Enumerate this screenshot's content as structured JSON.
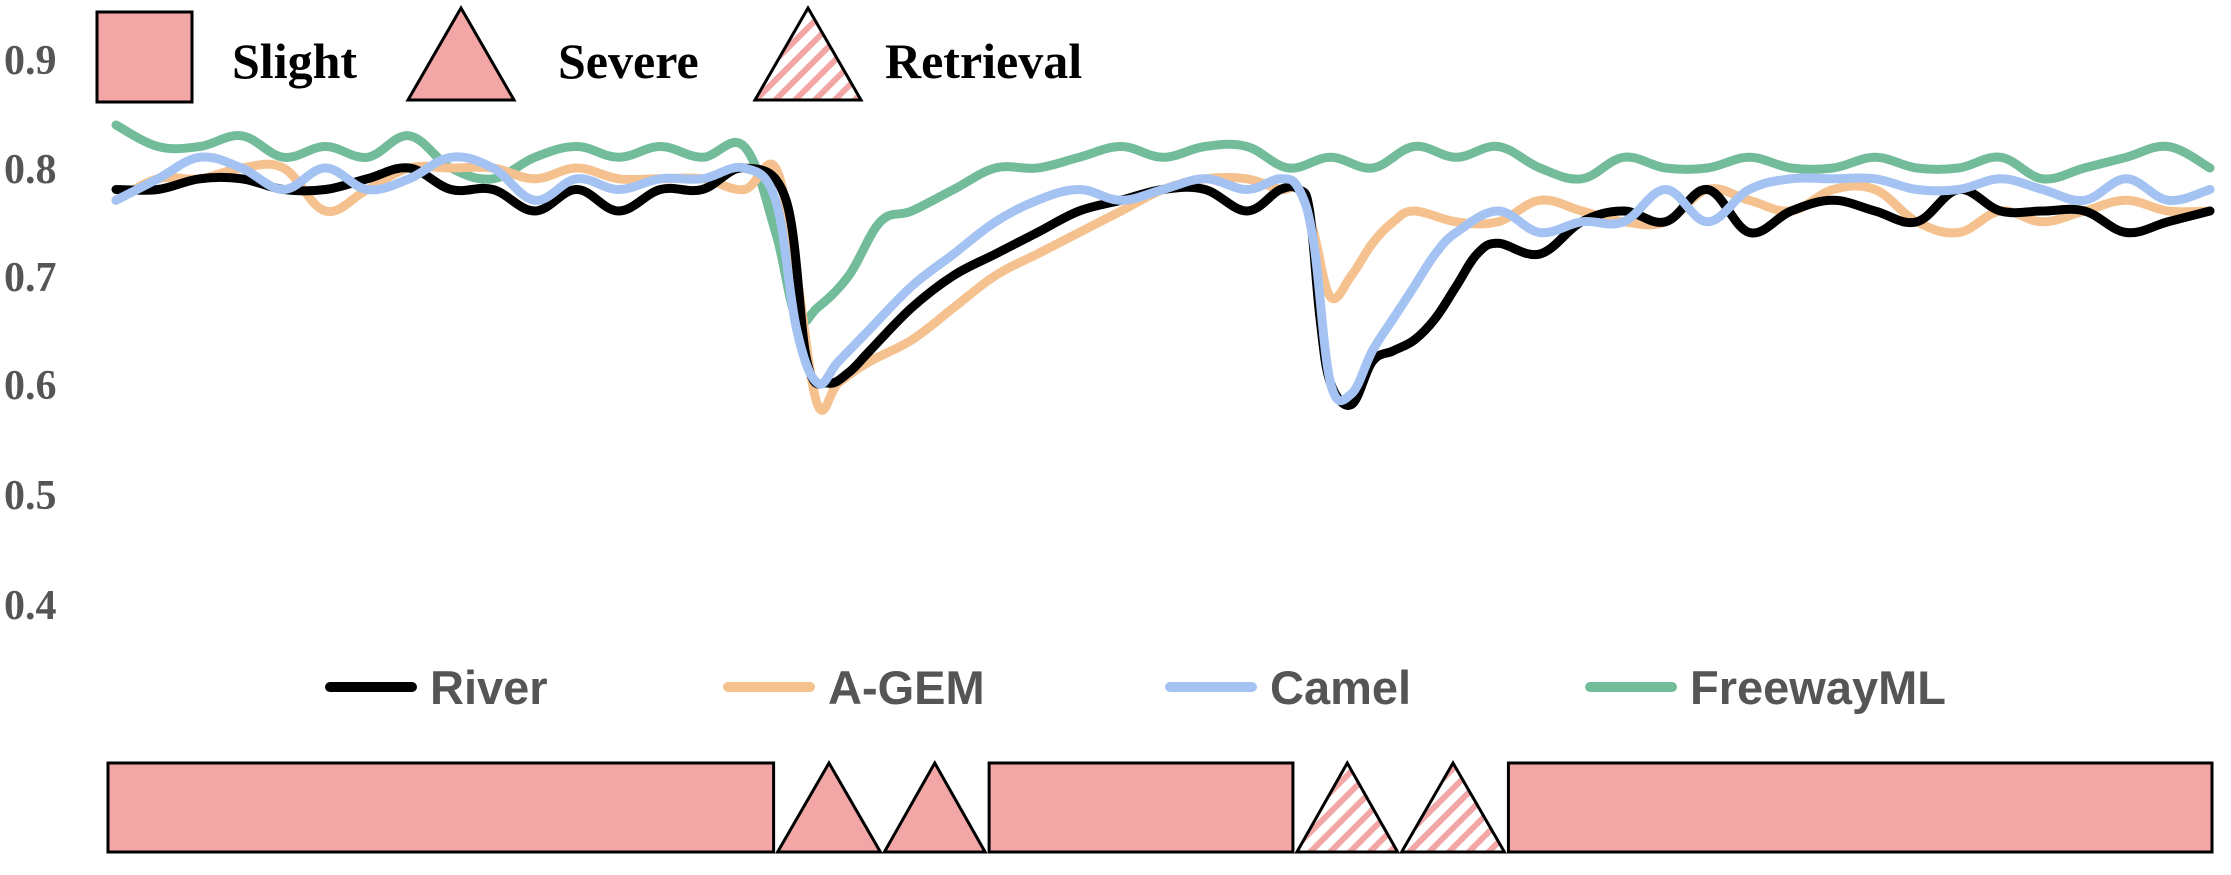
{
  "chart_data": {
    "type": "line",
    "title": "",
    "xlabel": "",
    "ylabel": "",
    "ylim": [
      0.4,
      0.95
    ],
    "xlim": [
      0,
      100
    ],
    "y_ticks": [
      0.4,
      0.5,
      0.6,
      0.7,
      0.8,
      0.9
    ],
    "y_tick_labels": [
      "0.4",
      "0.5",
      "0.6",
      "0.7",
      "0.8",
      "0.9"
    ],
    "grid": false,
    "legend": {
      "drift_types": [
        {
          "label": "Slight",
          "shape": "rectangle"
        },
        {
          "label": "Severe",
          "shape": "triangle"
        },
        {
          "label": "Retrieval",
          "shape": "hatched-triangle"
        }
      ],
      "series_placement": "bottom-center",
      "drift_placement": "top-left"
    },
    "drift_sequence": [
      {
        "type": "Slight",
        "start": 0,
        "end": 31.5
      },
      {
        "type": "Severe",
        "start": 31.5,
        "end": 36.6
      },
      {
        "type": "Severe",
        "start": 36.6,
        "end": 41.6
      },
      {
        "type": "Slight",
        "start": 41.6,
        "end": 56.3
      },
      {
        "type": "Retrieval",
        "start": 56.3,
        "end": 61.3
      },
      {
        "type": "Retrieval",
        "start": 61.3,
        "end": 66.4
      },
      {
        "type": "Slight",
        "start": 66.4,
        "end": 100
      }
    ],
    "series": [
      {
        "name": "River",
        "color": "#000000",
        "x": [
          0,
          2,
          4,
          6,
          8,
          10,
          12,
          14,
          16,
          18,
          20,
          22,
          24,
          26,
          28,
          30,
          32,
          33,
          34,
          35,
          36,
          38,
          40,
          42,
          44,
          46,
          48,
          50,
          52,
          54,
          55.6,
          56.5,
          57,
          57.5,
          58,
          59,
          60,
          61,
          62,
          63,
          64,
          65,
          66,
          68,
          70,
          72,
          74,
          76,
          78,
          80,
          82,
          84,
          86,
          88,
          90,
          92,
          94,
          96,
          98,
          100
        ],
        "values": [
          0.78,
          0.78,
          0.79,
          0.79,
          0.78,
          0.78,
          0.79,
          0.8,
          0.78,
          0.78,
          0.76,
          0.78,
          0.76,
          0.78,
          0.78,
          0.8,
          0.77,
          0.62,
          0.6,
          0.61,
          0.63,
          0.67,
          0.7,
          0.72,
          0.74,
          0.76,
          0.77,
          0.78,
          0.78,
          0.76,
          0.78,
          0.78,
          0.76,
          0.66,
          0.6,
          0.58,
          0.62,
          0.63,
          0.64,
          0.66,
          0.69,
          0.72,
          0.73,
          0.72,
          0.75,
          0.76,
          0.75,
          0.78,
          0.74,
          0.76,
          0.77,
          0.76,
          0.75,
          0.78,
          0.76,
          0.76,
          0.76,
          0.74,
          0.75,
          0.76
        ]
      },
      {
        "name": "A-GEM",
        "color": "#F5C28F",
        "x": [
          0,
          2,
          4,
          6,
          8,
          10,
          12,
          14,
          16,
          18,
          20,
          22,
          24,
          26,
          28,
          30,
          31.5,
          32.5,
          33.5,
          34.5,
          36,
          38,
          40,
          42,
          44,
          46,
          48,
          50,
          52,
          54,
          55.6,
          56.5,
          57.2,
          58,
          59,
          60,
          61,
          62,
          64,
          66,
          68,
          70,
          72,
          74,
          76,
          78,
          80,
          82,
          84,
          86,
          88,
          90,
          92,
          94,
          96,
          98,
          100
        ],
        "values": [
          0.77,
          0.79,
          0.79,
          0.8,
          0.8,
          0.76,
          0.78,
          0.8,
          0.8,
          0.8,
          0.79,
          0.8,
          0.79,
          0.79,
          0.79,
          0.78,
          0.8,
          0.7,
          0.58,
          0.6,
          0.62,
          0.64,
          0.67,
          0.7,
          0.72,
          0.74,
          0.76,
          0.78,
          0.79,
          0.79,
          0.78,
          0.78,
          0.74,
          0.68,
          0.7,
          0.73,
          0.75,
          0.76,
          0.75,
          0.75,
          0.77,
          0.76,
          0.75,
          0.75,
          0.78,
          0.77,
          0.76,
          0.78,
          0.78,
          0.75,
          0.74,
          0.76,
          0.75,
          0.76,
          0.77,
          0.76,
          0.76
        ]
      },
      {
        "name": "Camel",
        "color": "#A4C3F2",
        "x": [
          0,
          2,
          4,
          6,
          8,
          10,
          12,
          14,
          16,
          18,
          20,
          22,
          24,
          26,
          28,
          30,
          31.5,
          32.5,
          33.5,
          34.5,
          36,
          38,
          40,
          42,
          44,
          46,
          48,
          50,
          52,
          54,
          55.6,
          56.5,
          57.2,
          58,
          59,
          60,
          61,
          62,
          63,
          64,
          66,
          68,
          70,
          72,
          74,
          76,
          78,
          80,
          82,
          84,
          86,
          88,
          90,
          92,
          94,
          96,
          98,
          100
        ],
        "values": [
          0.77,
          0.79,
          0.81,
          0.8,
          0.78,
          0.8,
          0.78,
          0.79,
          0.81,
          0.8,
          0.77,
          0.79,
          0.78,
          0.79,
          0.79,
          0.8,
          0.77,
          0.65,
          0.6,
          0.62,
          0.65,
          0.69,
          0.72,
          0.75,
          0.77,
          0.78,
          0.77,
          0.78,
          0.79,
          0.78,
          0.79,
          0.78,
          0.73,
          0.6,
          0.59,
          0.63,
          0.66,
          0.69,
          0.72,
          0.74,
          0.76,
          0.74,
          0.75,
          0.75,
          0.78,
          0.75,
          0.78,
          0.79,
          0.79,
          0.79,
          0.78,
          0.78,
          0.79,
          0.78,
          0.77,
          0.79,
          0.77,
          0.78
        ]
      },
      {
        "name": "FreewayML",
        "color": "#72BC9A",
        "x": [
          0,
          2,
          4,
          6,
          8,
          10,
          12,
          14,
          16,
          18,
          20,
          22,
          24,
          26,
          28,
          30,
          31.5,
          32.5,
          33.5,
          35,
          36.5,
          38,
          40,
          42,
          44,
          46,
          48,
          50,
          52,
          54,
          56,
          58,
          60,
          62,
          64,
          66,
          68,
          70,
          72,
          74,
          76,
          78,
          80,
          82,
          84,
          86,
          88,
          90,
          92,
          94,
          96,
          98,
          100
        ],
        "values": [
          0.84,
          0.82,
          0.82,
          0.83,
          0.81,
          0.82,
          0.81,
          0.83,
          0.8,
          0.79,
          0.81,
          0.82,
          0.81,
          0.82,
          0.81,
          0.82,
          0.74,
          0.66,
          0.67,
          0.7,
          0.75,
          0.76,
          0.78,
          0.8,
          0.8,
          0.81,
          0.82,
          0.81,
          0.82,
          0.82,
          0.8,
          0.81,
          0.8,
          0.82,
          0.81,
          0.82,
          0.8,
          0.79,
          0.81,
          0.8,
          0.8,
          0.81,
          0.8,
          0.8,
          0.81,
          0.8,
          0.8,
          0.81,
          0.79,
          0.8,
          0.81,
          0.82,
          0.8
        ]
      }
    ]
  }
}
